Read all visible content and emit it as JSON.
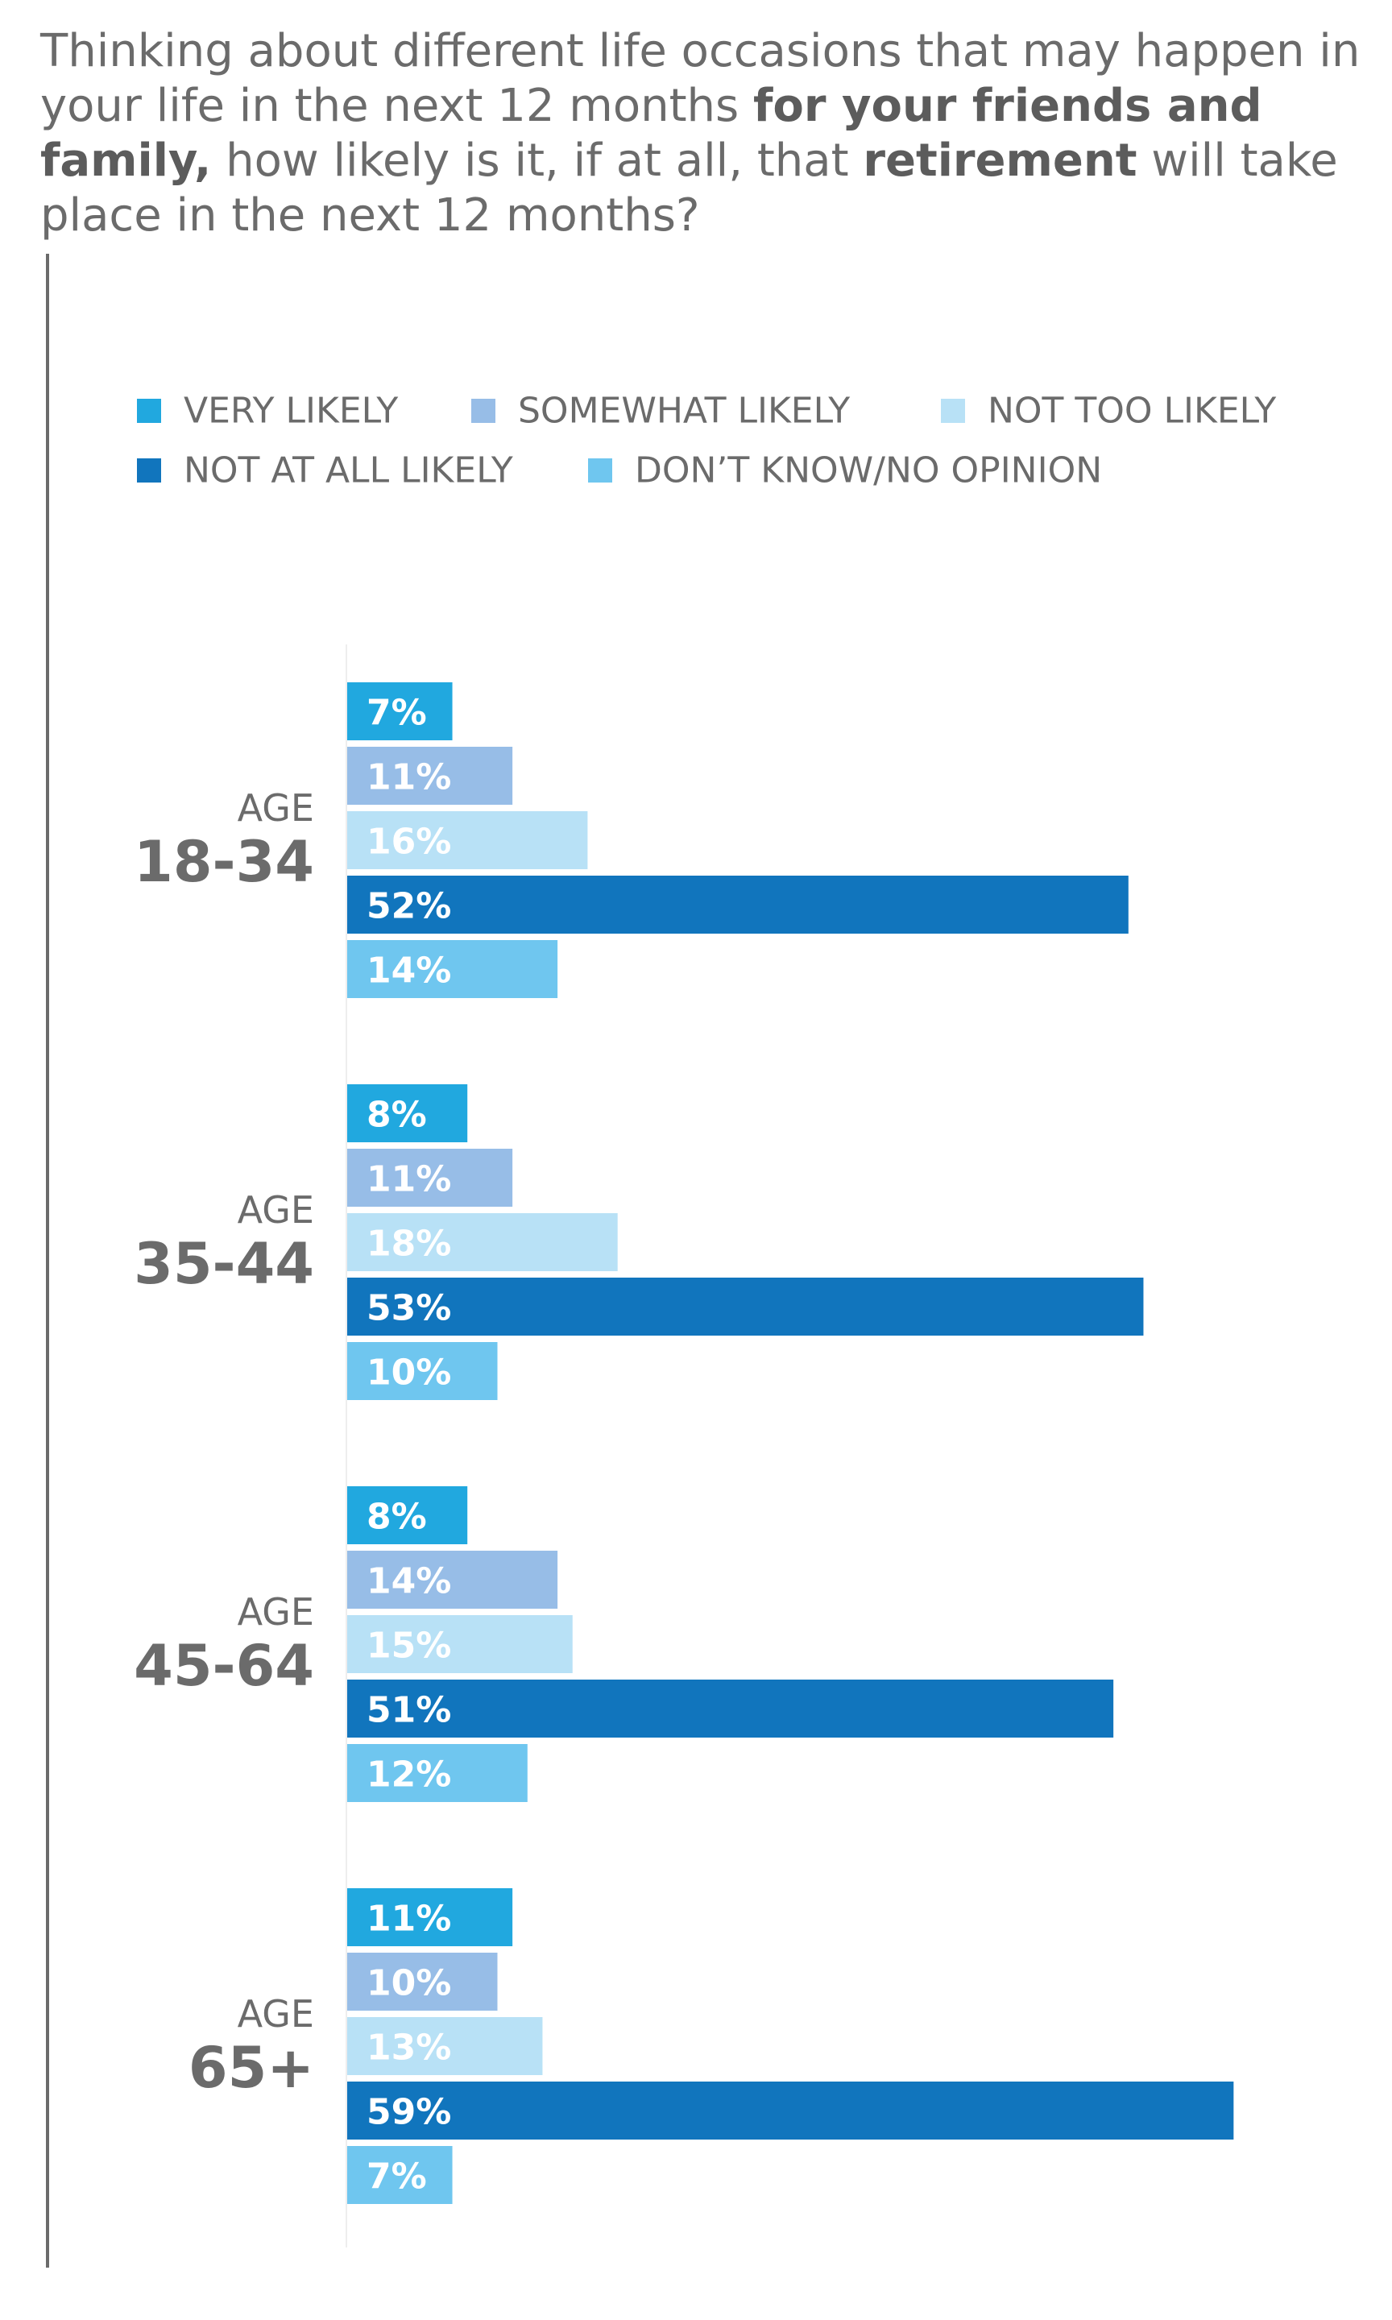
{
  "title": {
    "segments": [
      {
        "text": "Thinking about different life occasions that may happen in your life in the next 12 months ",
        "bold": false
      },
      {
        "text": "for your friends and family,",
        "bold": true
      },
      {
        "text": " how likely is it, if at all, that ",
        "bold": false
      },
      {
        "text": "retirement",
        "bold": true
      },
      {
        "text": " will take place in the next 12 months?",
        "bold": false
      }
    ]
  },
  "colors": {
    "very_likely": "#21a8df",
    "somewhat_likely": "#97bde7",
    "not_too_likely": "#b8e1f6",
    "not_at_all_likely": "#1175bd",
    "dont_know": "#6fc6ef",
    "label_text": "#ffffff",
    "axis_label": "#6b6b6b"
  },
  "chart_data": {
    "type": "bar",
    "orientation": "horizontal",
    "legend_position": "top",
    "categories": [
      "AGE 18-34",
      "AGE 35-44",
      "AGE 45-64",
      "AGE 65+"
    ],
    "category_labels": [
      {
        "line1": "AGE",
        "line2": "18-34"
      },
      {
        "line1": "AGE",
        "line2": "35-44"
      },
      {
        "line1": "AGE",
        "line2": "45-64"
      },
      {
        "line1": "AGE",
        "line2": "65+"
      }
    ],
    "unit": "%",
    "series": [
      {
        "name": "VERY LIKELY",
        "color_key": "very_likely",
        "values": [
          7,
          8,
          8,
          11
        ]
      },
      {
        "name": "SOMEWHAT LIKELY",
        "color_key": "somewhat_likely",
        "values": [
          11,
          11,
          14,
          10
        ]
      },
      {
        "name": "NOT TOO LIKELY",
        "color_key": "not_too_likely",
        "values": [
          16,
          18,
          15,
          13
        ]
      },
      {
        "name": "NOT AT ALL LIKELY",
        "color_key": "not_at_all_likely",
        "values": [
          52,
          53,
          51,
          59
        ]
      },
      {
        "name": "DON’T KNOW/NO OPINION",
        "color_key": "dont_know",
        "values": [
          14,
          10,
          12,
          7
        ]
      }
    ]
  }
}
